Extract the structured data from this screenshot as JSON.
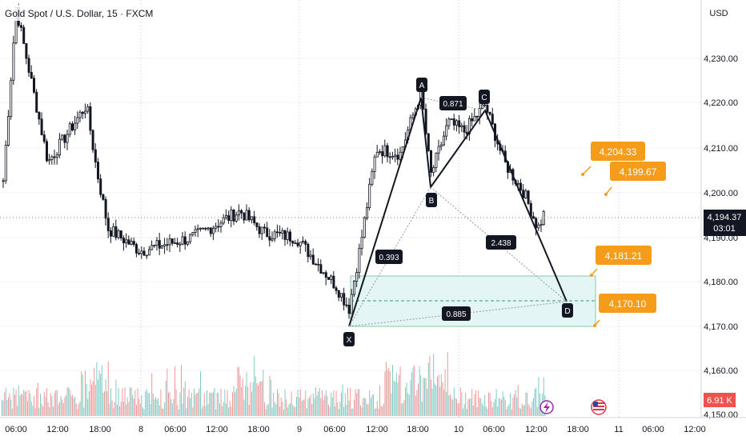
{
  "header": {
    "symbol_title": "Gold Spot / U.S. Dollar, 15 · FXCM",
    "currency_button": "USD"
  },
  "colors": {
    "bull": "#26a69a",
    "bear": "#ef5350",
    "candle": "#131722",
    "alert": "#f59c1a",
    "zone_fill": "#e3f6f5",
    "zone_border": "#8bc9a2"
  },
  "price_axis": {
    "labels": [
      "4,230.00",
      "4,220.00",
      "4,210.00",
      "4,200.00",
      "4,190.00",
      "4,180.00",
      "4,170.00",
      "4,160.00",
      "4,150.00"
    ],
    "current_price": "4,194.37",
    "countdown": "03:01",
    "volume_value": "6.91 K"
  },
  "time_axis": {
    "labels": [
      "06:00",
      "12:00",
      "18:00",
      "8",
      "06:00",
      "12:00",
      "18:00",
      "9",
      "06:00",
      "12:00",
      "18:00",
      "10",
      "06:00",
      "12:00",
      "18:00",
      "11",
      "06:00",
      "12:00"
    ]
  },
  "pattern": {
    "points": [
      "X",
      "A",
      "B",
      "C",
      "D"
    ],
    "ratios": [
      "0.393",
      "0.871",
      "2.438",
      "0.885"
    ]
  },
  "alerts": [
    "4,204.33",
    "4,199.67",
    "4,181.21",
    "4,170.10"
  ],
  "chart_data": {
    "type": "candlestick",
    "title": "Gold Spot / U.S. Dollar, 15 · FXCM",
    "ylim": [
      4148,
      4241
    ],
    "harmonic_pattern": {
      "X": 4171,
      "A": 4221.5,
      "B": 4201,
      "C": 4219.5,
      "D": 4175,
      "XB_ratio": 0.393,
      "AC_ratio": 0.871,
      "BD_ratio": 2.438,
      "XD_ratio": 0.885
    },
    "target_zone": [
      4170.1,
      4181.21
    ],
    "key_prices": {
      "1": 4240,
      "2": 4205,
      "3": 4218,
      "4": 4204,
      "5": 4190,
      "6": 4185,
      "7": 4188,
      "8": 4194,
      "9": 4189,
      "10": 4188,
      "11": 4177,
      "12": 4172,
      "13": 4186,
      "14": 4208,
      "15": 4207,
      "16": 4221,
      "17": 4202,
      "18": 4214,
      "19": 4212,
      "20": 4218,
      "21": 4205,
      "22": 4198,
      "23": 4190,
      "24": 4194.37
    }
  }
}
